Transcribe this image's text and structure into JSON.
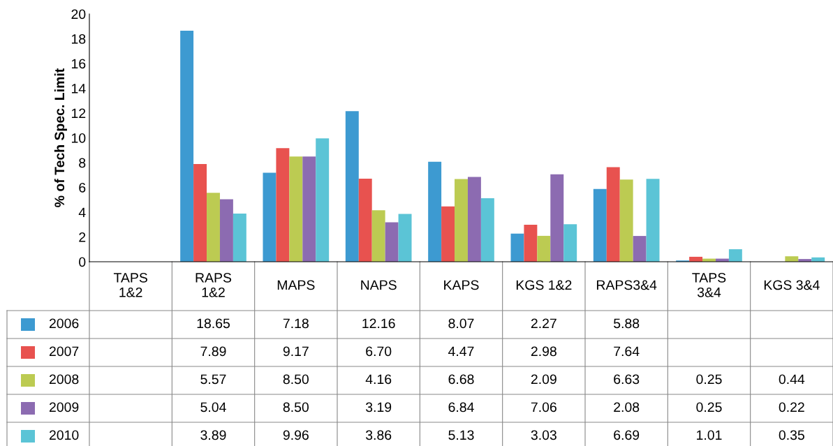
{
  "chart_data": {
    "type": "bar",
    "ylabel": "% of Tech Spec. Limit",
    "categories": [
      "TAPS\n1&2",
      "RAPS\n1&2",
      "MAPS",
      "NAPS",
      "KAPS",
      "KGS 1&2",
      "RAPS3&4",
      "TAPS\n3&4",
      "KGS 3&4"
    ],
    "series": [
      {
        "name": "2006",
        "color": "#3d9ad1",
        "values": [
          null,
          18.65,
          7.18,
          12.16,
          8.07,
          2.27,
          5.88,
          0.1,
          null
        ],
        "value_labels": [
          null,
          "18.65",
          "7.18",
          "12.16",
          "8.07",
          "2.27",
          "5.88",
          null,
          null
        ]
      },
      {
        "name": "2007",
        "color": "#e8524f",
        "values": [
          null,
          7.89,
          9.17,
          6.7,
          4.47,
          2.98,
          7.64,
          0.4,
          null
        ],
        "value_labels": [
          null,
          "7.89",
          "9.17",
          "6.70",
          "4.47",
          "2.98",
          "7.64",
          null,
          null
        ]
      },
      {
        "name": "2008",
        "color": "#bccb52",
        "values": [
          null,
          5.57,
          8.5,
          4.16,
          6.68,
          2.09,
          6.63,
          0.25,
          0.44
        ],
        "value_labels": [
          null,
          "5.57",
          "8.50",
          "4.16",
          "6.68",
          "2.09",
          "6.63",
          "0.25",
          "0.44"
        ]
      },
      {
        "name": "2009",
        "color": "#8c6bb1",
        "values": [
          null,
          5.04,
          8.5,
          3.19,
          6.84,
          7.06,
          2.08,
          0.25,
          0.22
        ],
        "value_labels": [
          null,
          "5.04",
          "8.50",
          "3.19",
          "6.84",
          "7.06",
          "2.08",
          "0.25",
          "0.22"
        ]
      },
      {
        "name": "2010",
        "color": "#5bc4d6",
        "values": [
          null,
          3.89,
          9.96,
          3.86,
          5.13,
          3.03,
          6.69,
          1.01,
          0.35
        ],
        "value_labels": [
          null,
          "3.89",
          "9.96",
          "3.86",
          "5.13",
          "3.03",
          "6.69",
          "1.01",
          "0.35"
        ]
      }
    ],
    "ylim": [
      0,
      20
    ],
    "yticks": [
      0,
      2,
      4,
      6,
      8,
      10,
      12,
      14,
      16,
      18,
      20
    ],
    "grid": false,
    "legend": "bottom left"
  }
}
